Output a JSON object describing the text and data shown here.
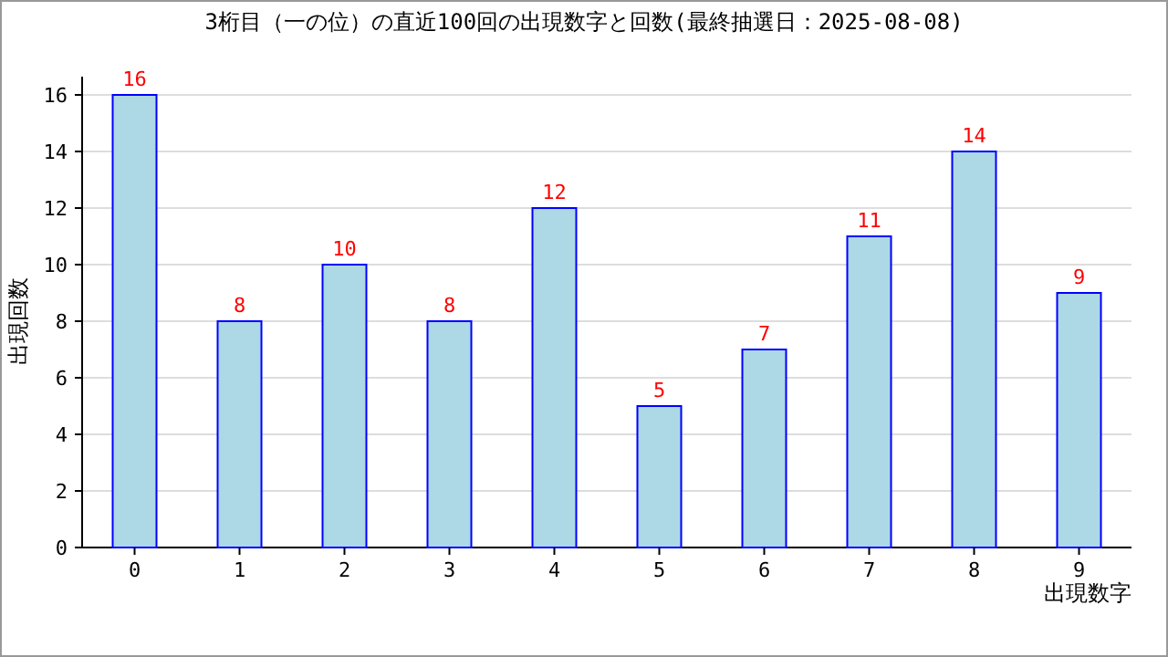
{
  "chart_data": {
    "type": "bar",
    "title": "3桁目（一の位）の直近100回の出現数字と回数(最終抽選日：2025-08-08)",
    "xlabel": "出現数字",
    "ylabel": "出現回数",
    "categories": [
      "0",
      "1",
      "2",
      "3",
      "4",
      "5",
      "6",
      "7",
      "8",
      "9"
    ],
    "values": [
      16,
      8,
      10,
      8,
      12,
      5,
      7,
      11,
      14,
      9
    ],
    "color": "#add8e6",
    "ylim": [
      0,
      16
    ],
    "yticks": [
      0,
      2,
      4,
      6,
      8,
      10,
      12,
      14,
      16
    ],
    "grid": "y",
    "data_labels": true
  }
}
